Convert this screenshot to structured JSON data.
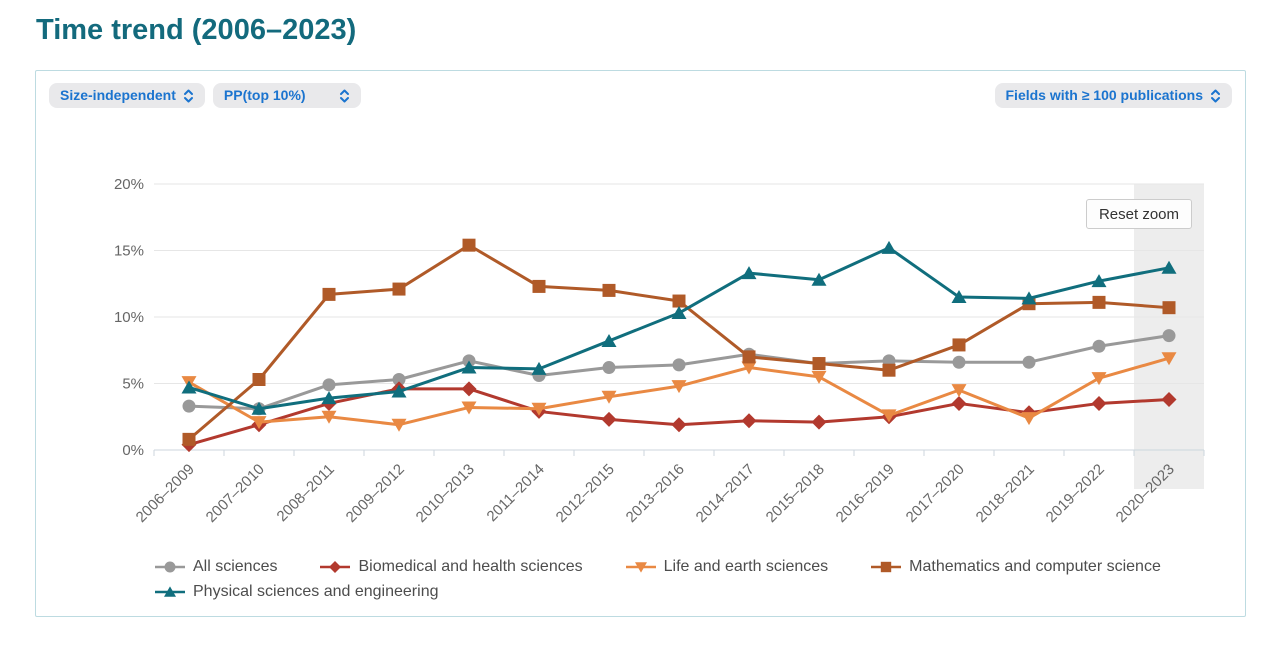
{
  "page": {
    "title": "Time trend (2006–2023)"
  },
  "toolbar": {
    "dropdown_indicator": "indicator-select",
    "dropdowns": [
      {
        "label": "Size-independent"
      },
      {
        "label": "PP(top 10%)"
      },
      {
        "label": "Fields with ≥ 100 publications"
      }
    ]
  },
  "chart": {
    "reset_zoom_label": "Reset zoom"
  },
  "colors": {
    "title_teal": "#136a7d",
    "dropdown_blue": "#1b74cf",
    "pill_background": "#e9e9eb",
    "panel_border": "#bddbe1",
    "gridline": "#e6e6e6",
    "axis_line": "#ccd6dd",
    "axis_label": "#666666",
    "legend_text": "#4d4d4d",
    "highlight_band": "#ededed"
  },
  "chart_data": {
    "type": "line",
    "title": "",
    "xlabel": "",
    "ylabel": "",
    "ylim": [
      0,
      20
    ],
    "yticks": [
      "0%",
      "5%",
      "10%",
      "15%",
      "20%"
    ],
    "grid": true,
    "legend_position": "bottom",
    "highlighted_category": "2020–2023",
    "categories": [
      "2006–2009",
      "2007–2010",
      "2008–2011",
      "2009–2012",
      "2010–2013",
      "2011–2014",
      "2012–2015",
      "2013–2016",
      "2014–2017",
      "2015–2018",
      "2016–2019",
      "2017–2020",
      "2018–2021",
      "2019–2022",
      "2020–2023"
    ],
    "series": [
      {
        "name": "All sciences",
        "color": "#999999",
        "marker": "circle",
        "values": [
          3.3,
          3.1,
          4.9,
          5.3,
          6.7,
          5.6,
          6.2,
          6.4,
          7.2,
          6.5,
          6.7,
          6.6,
          6.6,
          7.8,
          8.6
        ]
      },
      {
        "name": "Biomedical and health sciences",
        "color": "#b2392e",
        "marker": "diamond",
        "values": [
          0.4,
          1.9,
          3.5,
          4.6,
          4.6,
          2.9,
          2.3,
          1.9,
          2.2,
          2.1,
          2.5,
          3.5,
          2.8,
          3.5,
          3.8
        ]
      },
      {
        "name": "Life and earth sciences",
        "color": "#e98943",
        "marker": "triangle-down",
        "values": [
          5.1,
          2.1,
          2.5,
          1.9,
          3.2,
          3.1,
          4.0,
          4.8,
          6.2,
          5.5,
          2.6,
          4.5,
          2.4,
          5.4,
          6.9
        ]
      },
      {
        "name": "Mathematics and computer science",
        "color": "#b05a28",
        "marker": "square",
        "values": [
          0.8,
          5.3,
          11.7,
          12.1,
          15.4,
          12.3,
          12.0,
          11.2,
          7.0,
          6.5,
          6.0,
          7.9,
          11.0,
          11.1,
          10.7
        ]
      },
      {
        "name": "Physical sciences and engineering",
        "color": "#106e7d",
        "marker": "triangle-up",
        "values": [
          4.7,
          3.1,
          3.9,
          4.4,
          6.2,
          6.1,
          8.2,
          10.3,
          13.3,
          12.8,
          15.2,
          11.5,
          11.4,
          12.7,
          13.7
        ]
      }
    ]
  }
}
